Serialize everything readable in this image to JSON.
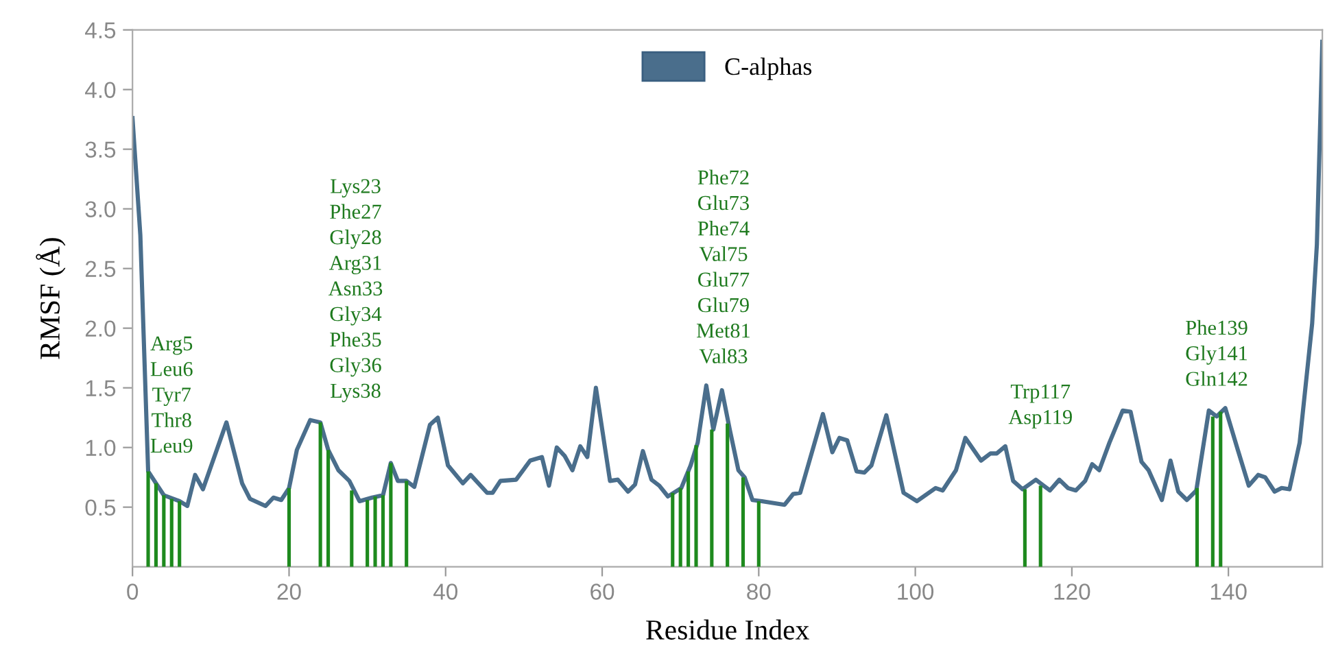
{
  "chart_data": {
    "type": "line",
    "xlabel": "Residue Index",
    "ylabel": "RMSF (Å)",
    "xlim": [
      0,
      152
    ],
    "ylim": [
      0,
      4.5
    ],
    "xticks": [
      0,
      20,
      40,
      60,
      80,
      100,
      120,
      140
    ],
    "yticks": [
      0.5,
      {
        "value": 1,
        "label": "1.0"
      },
      1.5,
      {
        "value": 2,
        "label": "2.0"
      },
      2.5,
      {
        "value": 3,
        "label": "3.0"
      },
      3.5,
      {
        "value": 4,
        "label": "4.0"
      },
      4.5
    ],
    "grid": false,
    "legend": "top",
    "marker": "none",
    "line_style": "solid",
    "series": [
      {
        "type": "bar",
        "color": "#1e8a1e",
        "x": [
          2,
          3,
          4,
          5,
          6,
          20,
          24,
          25,
          28,
          30,
          31,
          32,
          33,
          35,
          69,
          70,
          71,
          72,
          74,
          76,
          78,
          80,
          114,
          116,
          136,
          138,
          139
        ],
        "values": [
          0.8,
          0.7,
          0.6,
          0.57,
          0.55,
          0.66,
          1.21,
          0.98,
          0.64,
          0.56,
          0.59,
          0.6,
          0.87,
          0.72,
          0.62,
          0.66,
          0.8,
          1.02,
          1.15,
          1.2,
          0.75,
          0.55,
          0.65,
          0.68,
          0.66,
          1.26,
          1.3
        ]
      },
      {
        "name": "C-alphas",
        "color": "#4a6e8c",
        "x": [
          0,
          1,
          2,
          3,
          4,
          6,
          7,
          8,
          9,
          12,
          14,
          15,
          17,
          18,
          19,
          20,
          21,
          22.7,
          24,
          25,
          26.3,
          27.7,
          29,
          30.6,
          32,
          33,
          33.9,
          35,
          36,
          38,
          39,
          40.3,
          42.2,
          43.2,
          45.3,
          46,
          47,
          49,
          50.8,
          52.3,
          53.2,
          54.2,
          55.2,
          56.2,
          57.2,
          58.1,
          59.2,
          61,
          62,
          63.3,
          64.2,
          65.2,
          66.3,
          67.3,
          68.4,
          70.1,
          71.3,
          72.2,
          73.3,
          74.2,
          75.3,
          76.3,
          77.4,
          78.2,
          79.2,
          80.4,
          83.3,
          84.4,
          85.3,
          88.2,
          89.4,
          90.3,
          91.3,
          92.5,
          93.5,
          94.4,
          96.3,
          98.5,
          100.2,
          102.6,
          103.5,
          105.2,
          106.4,
          108.4,
          109.6,
          110.4,
          111.5,
          112.5,
          113.7,
          115.4,
          117.2,
          118.4,
          119.5,
          120.5,
          121.7,
          122.6,
          123.5,
          124.8,
          126.5,
          127.5,
          128.9,
          129.8,
          131.5,
          132.6,
          133.6,
          134.7,
          135.9,
          137.5,
          138.5,
          139.6,
          141.2,
          142.6,
          143.8,
          144.7,
          145.9,
          146.8,
          147.8,
          149.1,
          150.7,
          151.3,
          151.8,
          152
        ],
        "values": [
          3.76,
          2.78,
          0.8,
          0.7,
          0.6,
          0.55,
          0.51,
          0.77,
          0.65,
          1.21,
          0.7,
          0.57,
          0.51,
          0.58,
          0.56,
          0.66,
          0.98,
          1.23,
          1.21,
          0.98,
          0.81,
          0.72,
          0.55,
          0.58,
          0.6,
          0.87,
          0.72,
          0.72,
          0.67,
          1.19,
          1.25,
          0.85,
          0.7,
          0.77,
          0.62,
          0.62,
          0.72,
          0.73,
          0.89,
          0.92,
          0.68,
          1.0,
          0.93,
          0.81,
          1.01,
          0.92,
          1.5,
          0.72,
          0.73,
          0.63,
          0.69,
          0.97,
          0.73,
          0.68,
          0.59,
          0.66,
          0.85,
          1.04,
          1.52,
          1.15,
          1.48,
          1.15,
          0.81,
          0.75,
          0.56,
          0.55,
          0.52,
          0.61,
          0.62,
          1.28,
          0.96,
          1.08,
          1.06,
          0.8,
          0.79,
          0.85,
          1.27,
          0.62,
          0.55,
          0.66,
          0.64,
          0.81,
          1.08,
          0.89,
          0.95,
          0.95,
          1.01,
          0.72,
          0.65,
          0.73,
          0.64,
          0.73,
          0.66,
          0.64,
          0.72,
          0.86,
          0.81,
          1.04,
          1.31,
          1.3,
          0.88,
          0.81,
          0.56,
          0.89,
          0.63,
          0.56,
          0.64,
          1.31,
          1.26,
          1.33,
          0.98,
          0.68,
          0.77,
          0.75,
          0.63,
          0.66,
          0.65,
          1.04,
          2.04,
          2.7,
          3.9,
          4.4
        ]
      }
    ],
    "annotations": [
      "Arg5\nLeu6\nTyr7\nThr8\nLeu9",
      "Lys23\nPhe27\nGly28\nArg31\nAsn33\nGly34\nPhe35\nGly36\nLys38",
      "Phe72\nGlu73\nPhe74\nVal75\nGlu77\nGlu79\nMet81\nVal83",
      "Trp117\nAsp119",
      "Phe139\nGly141\nGln142"
    ]
  }
}
